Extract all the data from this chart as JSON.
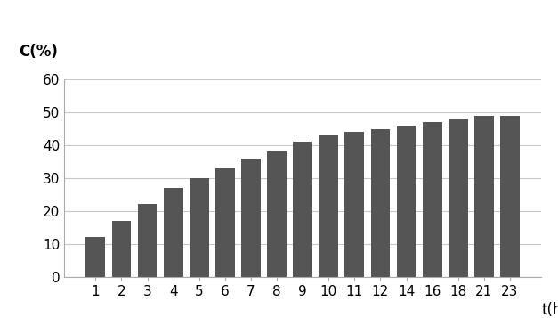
{
  "categories": [
    1,
    2,
    3,
    4,
    5,
    6,
    7,
    8,
    9,
    10,
    11,
    12,
    14,
    16,
    18,
    21,
    23
  ],
  "values": [
    12,
    17,
    22,
    27,
    30,
    33,
    36,
    38,
    41,
    43,
    44,
    45,
    46,
    47,
    48,
    49,
    49
  ],
  "bar_color": "#555555",
  "ylabel": "C(%)",
  "xlabel": "t(h)",
  "ylim": [
    0,
    60
  ],
  "yticks": [
    0,
    10,
    20,
    30,
    40,
    50,
    60
  ],
  "background_color": "#ffffff",
  "grid_color": "#c8c8c8",
  "ylabel_fontsize": 12,
  "xlabel_fontsize": 12,
  "tick_fontsize": 11
}
